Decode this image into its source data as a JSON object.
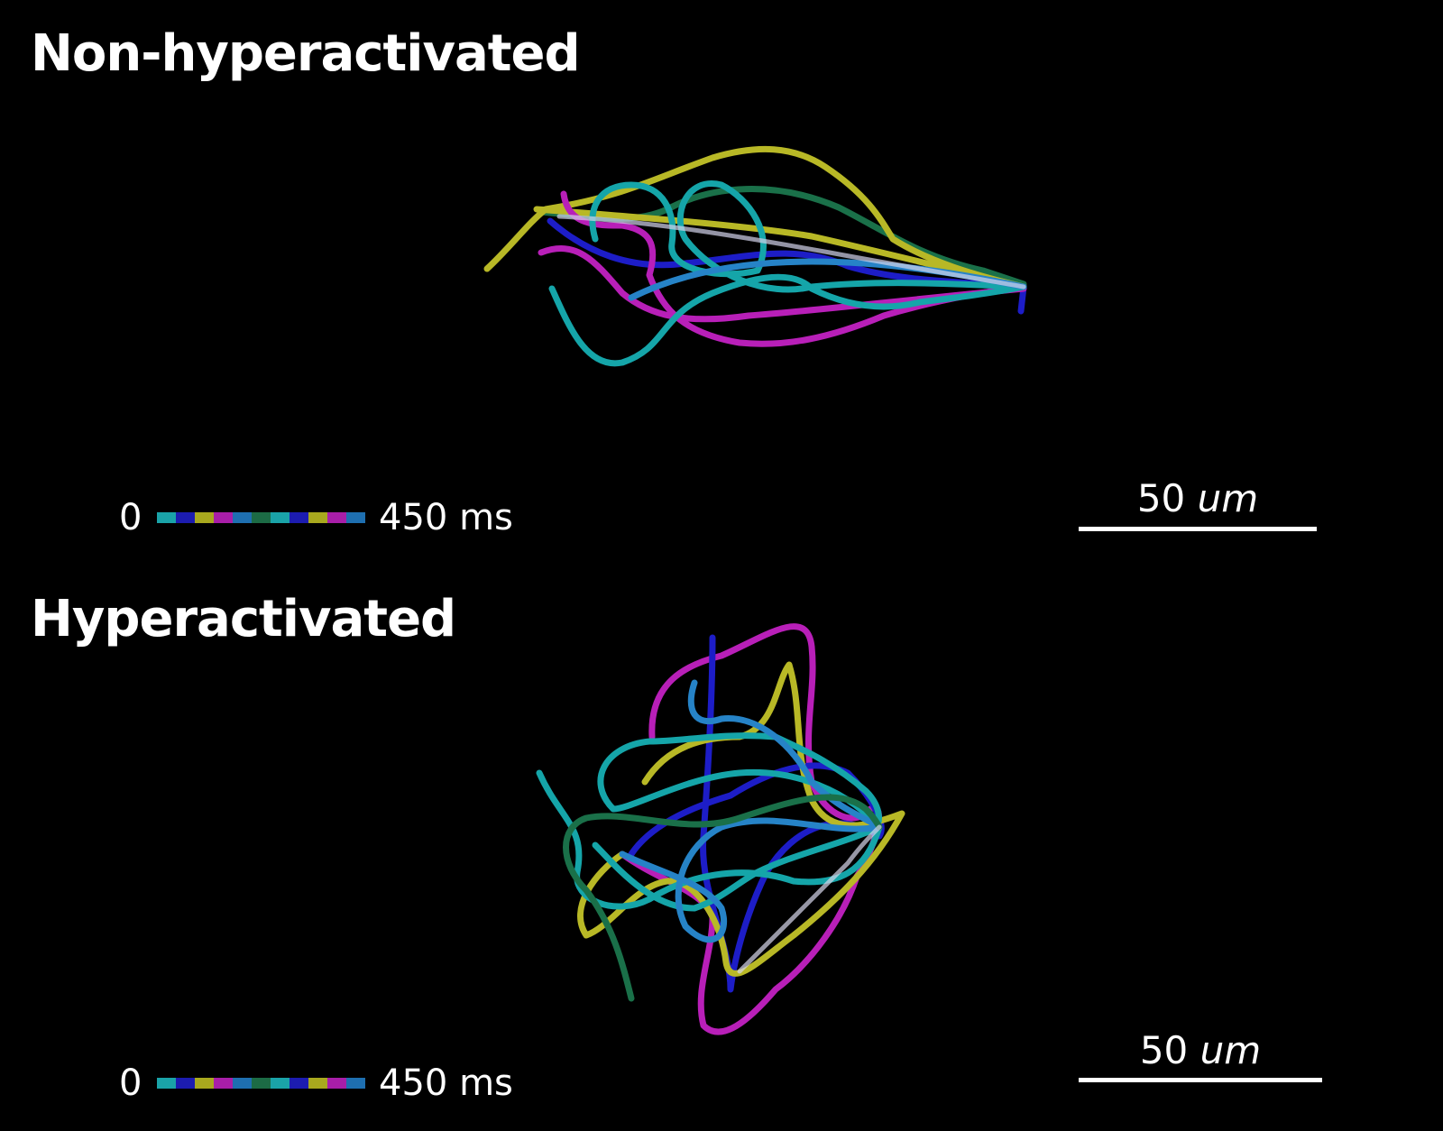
{
  "panels": [
    {
      "title": "Non-hyperactivated",
      "legend": {
        "start": "0",
        "end": "450 ms",
        "colors": [
          "#1aa3a8",
          "#1c1cb0",
          "#a8a81e",
          "#a81ea8",
          "#1e6fb0",
          "#1c6b45",
          "#1aa3a8",
          "#1c1cb0",
          "#a8a81e",
          "#a81ea8",
          "#1e6fb0"
        ]
      },
      "scale_bar": {
        "value": "50",
        "unit": "um"
      }
    },
    {
      "title": "Hyperactivated",
      "legend": {
        "start": "0",
        "end": "450 ms",
        "colors": [
          "#1aa3a8",
          "#1c1cb0",
          "#a8a81e",
          "#a81ea8",
          "#1e6fb0",
          "#1c6b45",
          "#1aa3a8",
          "#1c1cb0",
          "#a8a81e",
          "#a81ea8",
          "#1e6fb0"
        ]
      },
      "scale_bar": {
        "value": "50",
        "unit": "um"
      }
    }
  ],
  "track_colors": {
    "teal": "#17b3b8",
    "blue": "#2020d8",
    "yellow": "#c8c82a",
    "magenta": "#c822c8",
    "sky": "#2a8fd8",
    "green": "#1d7a50"
  }
}
